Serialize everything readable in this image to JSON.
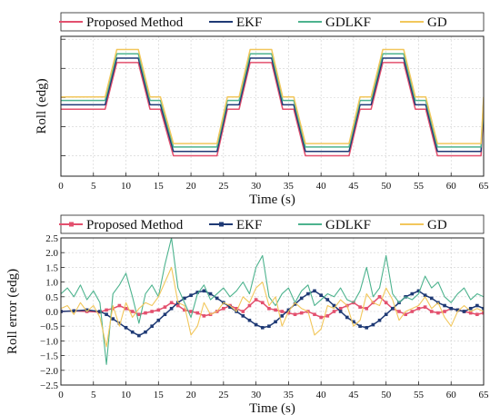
{
  "chart_data": [
    {
      "type": "line",
      "title": "",
      "xlabel": "Time (s)",
      "ylabel": "Roll (edg)",
      "xlim": [
        0,
        65
      ],
      "x_ticks": [
        0,
        5,
        10,
        15,
        20,
        25,
        30,
        35,
        40,
        45,
        50,
        55,
        60,
        65
      ],
      "grid": true,
      "legend": "top-outside",
      "series": [
        {
          "name": "Proposed Method",
          "color": "#e3506e",
          "x": [
            0,
            6.8,
            8.6,
            11.9,
            13.7,
            15.3,
            17.3,
            19.0,
            22.3,
            24.0,
            25.6,
            27.4,
            29.1,
            32.4,
            34.1,
            35.8,
            37.6,
            39.3,
            42.5,
            44.3,
            46.0,
            47.7,
            49.5,
            52.7,
            54.5,
            56.1,
            57.9,
            59.6,
            62.9,
            64.6,
            65
          ],
          "y": [
            0,
            0,
            1.6,
            1.6,
            0,
            0,
            -1.6,
            -1.6,
            -1.6,
            -1.6,
            0,
            0,
            1.6,
            1.6,
            0,
            0,
            -1.6,
            -1.6,
            -1.6,
            -1.6,
            0,
            0,
            1.6,
            1.6,
            0,
            0,
            -1.6,
            -1.6,
            -1.6,
            -1.6,
            0
          ]
        },
        {
          "name": "EKF",
          "color": "#1f3a75",
          "x": [
            0,
            6.8,
            8.6,
            11.9,
            13.7,
            15.3,
            17.3,
            19.0,
            22.3,
            24.0,
            25.6,
            27.4,
            29.1,
            32.4,
            34.1,
            35.8,
            37.6,
            39.3,
            42.5,
            44.3,
            46.0,
            47.7,
            49.5,
            52.7,
            54.5,
            56.1,
            57.9,
            59.6,
            62.9,
            64.6,
            65
          ],
          "y": [
            0.15,
            0.15,
            1.75,
            1.75,
            0.15,
            0.15,
            -1.45,
            -1.45,
            -1.45,
            -1.45,
            0.15,
            0.15,
            1.75,
            1.75,
            0.15,
            0.15,
            -1.45,
            -1.45,
            -1.45,
            -1.45,
            0.15,
            0.15,
            1.75,
            1.75,
            0.15,
            0.15,
            -1.45,
            -1.45,
            -1.45,
            -1.45,
            0.15
          ]
        },
        {
          "name": "GDLKF",
          "color": "#4db38e",
          "x": [
            0,
            6.8,
            8.6,
            11.9,
            13.7,
            15.3,
            17.3,
            19.0,
            22.3,
            24.0,
            25.6,
            27.4,
            29.1,
            32.4,
            34.1,
            35.8,
            37.6,
            39.3,
            42.5,
            44.3,
            46.0,
            47.7,
            49.5,
            52.7,
            54.5,
            56.1,
            57.9,
            59.6,
            62.9,
            64.6,
            65
          ],
          "y": [
            0.3,
            0.3,
            1.9,
            1.9,
            0.3,
            0.3,
            -1.3,
            -1.3,
            -1.3,
            -1.3,
            0.3,
            0.3,
            1.9,
            1.9,
            0.3,
            0.3,
            -1.3,
            -1.3,
            -1.3,
            -1.3,
            0.3,
            0.3,
            1.9,
            1.9,
            0.3,
            0.3,
            -1.3,
            -1.3,
            -1.3,
            -1.3,
            0.3
          ]
        },
        {
          "name": "GD",
          "color": "#f2c75c",
          "x": [
            0,
            6.8,
            8.6,
            11.9,
            13.7,
            15.3,
            17.3,
            19.0,
            22.3,
            24.0,
            25.6,
            27.4,
            29.1,
            32.4,
            34.1,
            35.8,
            37.6,
            39.3,
            42.5,
            44.3,
            46.0,
            47.7,
            49.5,
            52.7,
            54.5,
            56.1,
            57.9,
            59.6,
            62.9,
            64.6,
            65
          ],
          "y": [
            0.42,
            0.42,
            2.05,
            2.05,
            0.42,
            0.42,
            -1.18,
            -1.18,
            -1.18,
            -1.18,
            0.42,
            0.42,
            2.05,
            2.05,
            0.42,
            0.42,
            -1.18,
            -1.18,
            -1.18,
            -1.18,
            0.42,
            0.42,
            2.05,
            2.05,
            0.42,
            0.42,
            -1.18,
            -1.18,
            -1.18,
            -1.18,
            0.42
          ]
        }
      ]
    },
    {
      "type": "line",
      "title": "",
      "xlabel": "Time (s)",
      "ylabel": "Roll error (edg)",
      "xlim": [
        0,
        65
      ],
      "ylim": [
        -2.5,
        2.5
      ],
      "x_ticks": [
        0,
        5,
        10,
        15,
        20,
        25,
        30,
        35,
        40,
        45,
        50,
        55,
        60,
        65
      ],
      "y_ticks": [
        -2.5,
        -2.0,
        -1.5,
        -1.0,
        -0.5,
        0.0,
        0.5,
        1.0,
        1.5,
        2.0,
        2.5
      ],
      "y_tick_labels": [
        "−2.5",
        "−2.0",
        "−1.5",
        "−1.0",
        "−0.5",
        "0.0",
        "0.5",
        "1.0",
        "1.5",
        "2.0",
        "2.5"
      ],
      "grid": true,
      "legend": "top-outside",
      "series": [
        {
          "name": "Proposed Method",
          "color": "#e3506e",
          "x": [
            0,
            2,
            4,
            6,
            7,
            8,
            9,
            10,
            11,
            12,
            13,
            14,
            15,
            16,
            17,
            18,
            19,
            20,
            21,
            22,
            23,
            24,
            25,
            26,
            27,
            28,
            29,
            30,
            31,
            32,
            33,
            34,
            35,
            36,
            37,
            38,
            39,
            40,
            41,
            42,
            43,
            44,
            45,
            46,
            47,
            48,
            49,
            50,
            51,
            52,
            53,
            54,
            55,
            56,
            57,
            58,
            59,
            60,
            61,
            62,
            63,
            64,
            65
          ],
          "y": [
            0.0,
            0.02,
            0.0,
            -0.02,
            0.05,
            0.1,
            0.2,
            0.1,
            0.0,
            -0.1,
            -0.05,
            0.0,
            0.05,
            0.15,
            0.3,
            0.2,
            0.05,
            0.0,
            -0.05,
            -0.15,
            -0.1,
            0.0,
            0.1,
            0.2,
            0.1,
            0.0,
            0.2,
            0.4,
            0.3,
            0.1,
            0.05,
            0.0,
            -0.05,
            -0.1,
            -0.05,
            0.0,
            -0.1,
            -0.2,
            -0.15,
            0.0,
            0.1,
            0.2,
            0.3,
            0.15,
            0.1,
            0.3,
            0.5,
            0.3,
            0.1,
            0.0,
            -0.1,
            0.0,
            0.1,
            0.15,
            0.0,
            -0.05,
            0.0,
            0.1,
            0.05,
            0.0,
            -0.05,
            -0.1,
            -0.05
          ]
        },
        {
          "name": "EKF",
          "color": "#1f3a75",
          "x": [
            0,
            2,
            4,
            6,
            7,
            8,
            9,
            10,
            11,
            12,
            13,
            14,
            15,
            16,
            17,
            18,
            19,
            20,
            21,
            22,
            23,
            24,
            25,
            26,
            27,
            28,
            29,
            30,
            31,
            32,
            33,
            34,
            35,
            36,
            37,
            38,
            39,
            40,
            41,
            42,
            43,
            44,
            45,
            46,
            47,
            48,
            49,
            50,
            51,
            52,
            53,
            54,
            55,
            56,
            57,
            58,
            59,
            60,
            61,
            62,
            63,
            64,
            65
          ],
          "y": [
            0.0,
            0.02,
            0.05,
            0.0,
            -0.1,
            -0.25,
            -0.4,
            -0.55,
            -0.7,
            -0.82,
            -0.7,
            -0.5,
            -0.3,
            -0.1,
            0.1,
            0.3,
            0.45,
            0.55,
            0.65,
            0.7,
            0.6,
            0.45,
            0.3,
            0.15,
            0.0,
            -0.15,
            -0.3,
            -0.45,
            -0.55,
            -0.5,
            -0.35,
            -0.15,
            0.05,
            0.25,
            0.45,
            0.6,
            0.7,
            0.55,
            0.4,
            0.2,
            0.0,
            -0.2,
            -0.35,
            -0.5,
            -0.55,
            -0.45,
            -0.3,
            -0.1,
            0.1,
            0.3,
            0.5,
            0.6,
            0.7,
            0.55,
            0.45,
            0.3,
            0.2,
            0.1,
            0.05,
            0.0,
            0.1,
            0.2,
            0.1
          ]
        },
        {
          "name": "GDLKF",
          "color": "#4db38e",
          "x": [
            0,
            1,
            2,
            3,
            4,
            5,
            6,
            7,
            8,
            9,
            10,
            11,
            12,
            13,
            14,
            15,
            16,
            17,
            18,
            19,
            20,
            21,
            22,
            23,
            24,
            25,
            26,
            27,
            28,
            29,
            30,
            31,
            32,
            33,
            34,
            35,
            36,
            37,
            38,
            39,
            40,
            41,
            42,
            43,
            44,
            45,
            46,
            47,
            48,
            49,
            50,
            51,
            52,
            53,
            54,
            55,
            56,
            57,
            58,
            59,
            60,
            61,
            62,
            63,
            64,
            65
          ],
          "y": [
            0.6,
            0.8,
            0.5,
            0.9,
            0.4,
            0.7,
            0.3,
            -1.8,
            0.6,
            0.9,
            1.3,
            0.5,
            -0.4,
            0.6,
            0.9,
            0.5,
            1.6,
            2.5,
            0.8,
            0.3,
            -0.2,
            0.6,
            0.9,
            0.4,
            0.6,
            0.8,
            0.5,
            0.7,
            1.0,
            0.6,
            1.5,
            1.9,
            0.5,
            0.2,
            0.6,
            0.8,
            0.3,
            0.7,
            0.9,
            0.2,
            0.4,
            0.6,
            0.5,
            0.8,
            0.4,
            0.3,
            0.7,
            1.5,
            0.5,
            0.8,
            1.9,
            0.6,
            0.3,
            0.5,
            0.4,
            0.6,
            1.2,
            0.8,
            1.0,
            0.5,
            0.3,
            0.6,
            0.8,
            0.4,
            0.6,
            0.5
          ]
        },
        {
          "name": "GD",
          "color": "#f2c75c",
          "x": [
            0,
            1,
            2,
            3,
            4,
            5,
            6,
            7,
            8,
            9,
            10,
            11,
            12,
            13,
            14,
            15,
            16,
            17,
            18,
            19,
            20,
            21,
            22,
            23,
            24,
            25,
            26,
            27,
            28,
            29,
            30,
            31,
            32,
            33,
            34,
            35,
            36,
            37,
            38,
            39,
            40,
            41,
            42,
            43,
            44,
            45,
            46,
            47,
            48,
            49,
            50,
            51,
            52,
            53,
            54,
            55,
            56,
            57,
            58,
            59,
            60,
            61,
            62,
            63,
            64,
            65
          ],
          "y": [
            0.1,
            0.2,
            -0.1,
            0.3,
            0.0,
            0.2,
            -0.2,
            -1.2,
            0.2,
            -0.5,
            0.3,
            -0.2,
            0.1,
            0.3,
            0.2,
            0.5,
            1.0,
            1.5,
            0.3,
            0.2,
            -0.8,
            -0.5,
            0.3,
            -0.1,
            0.0,
            0.3,
            0.2,
            0.0,
            0.5,
            0.3,
            0.8,
            1.0,
            0.2,
            0.5,
            -0.5,
            0.0,
            0.3,
            0.1,
            0.0,
            -0.8,
            -0.6,
            0.2,
            0.1,
            0.4,
            0.2,
            -0.5,
            -0.3,
            0.6,
            0.3,
            0.2,
            0.8,
            0.4,
            -0.3,
            0.0,
            0.1,
            0.2,
            0.5,
            0.1,
            0.3,
            -0.2,
            -0.5,
            0.0,
            0.2,
            0.0,
            0.1,
            0.0
          ]
        }
      ]
    }
  ]
}
